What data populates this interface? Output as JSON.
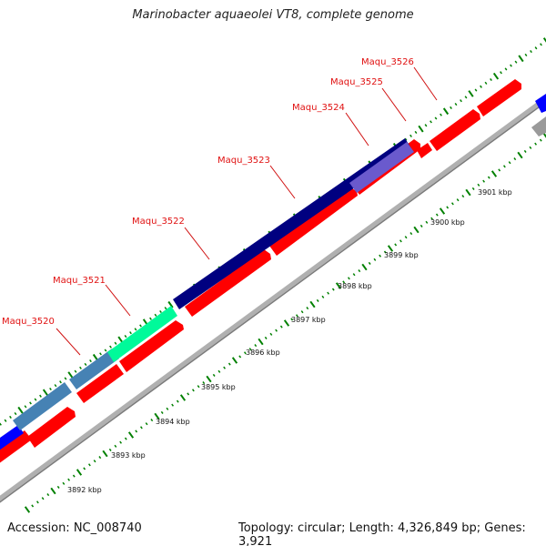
{
  "title": "Marinobacter aquaeolei VT8, complete genome",
  "footer": {
    "accession": "Accession: NC_008740",
    "summary": "Topology: circular; Length: 4,326,849 bp; Genes: 3,921"
  },
  "gene_labels": [
    "Maqu_3520",
    "Maqu_3521",
    "Maqu_3522",
    "Maqu_3523",
    "Maqu_3524",
    "Maqu_3525",
    "Maqu_3526"
  ],
  "scale_labels": [
    "3892 kbp",
    "3893 kbp",
    "3894 kbp",
    "3895 kbp",
    "3896 kbp",
    "3897 kbp",
    "3898 kbp",
    "3899 kbp",
    "3900 kbp",
    "3901 kbp"
  ],
  "colors": {
    "forward_strand_red": "#ff0000",
    "backbone_gray": "#999999",
    "gene_3520": "#4682b4",
    "gene_3521": "#00fa9a",
    "gene_3522_3523": "#000080",
    "gene_3524": "#6a5acd",
    "neighbor_blue": "#0000ff",
    "tick_green": "#008000",
    "label_red": "#e01010"
  }
}
